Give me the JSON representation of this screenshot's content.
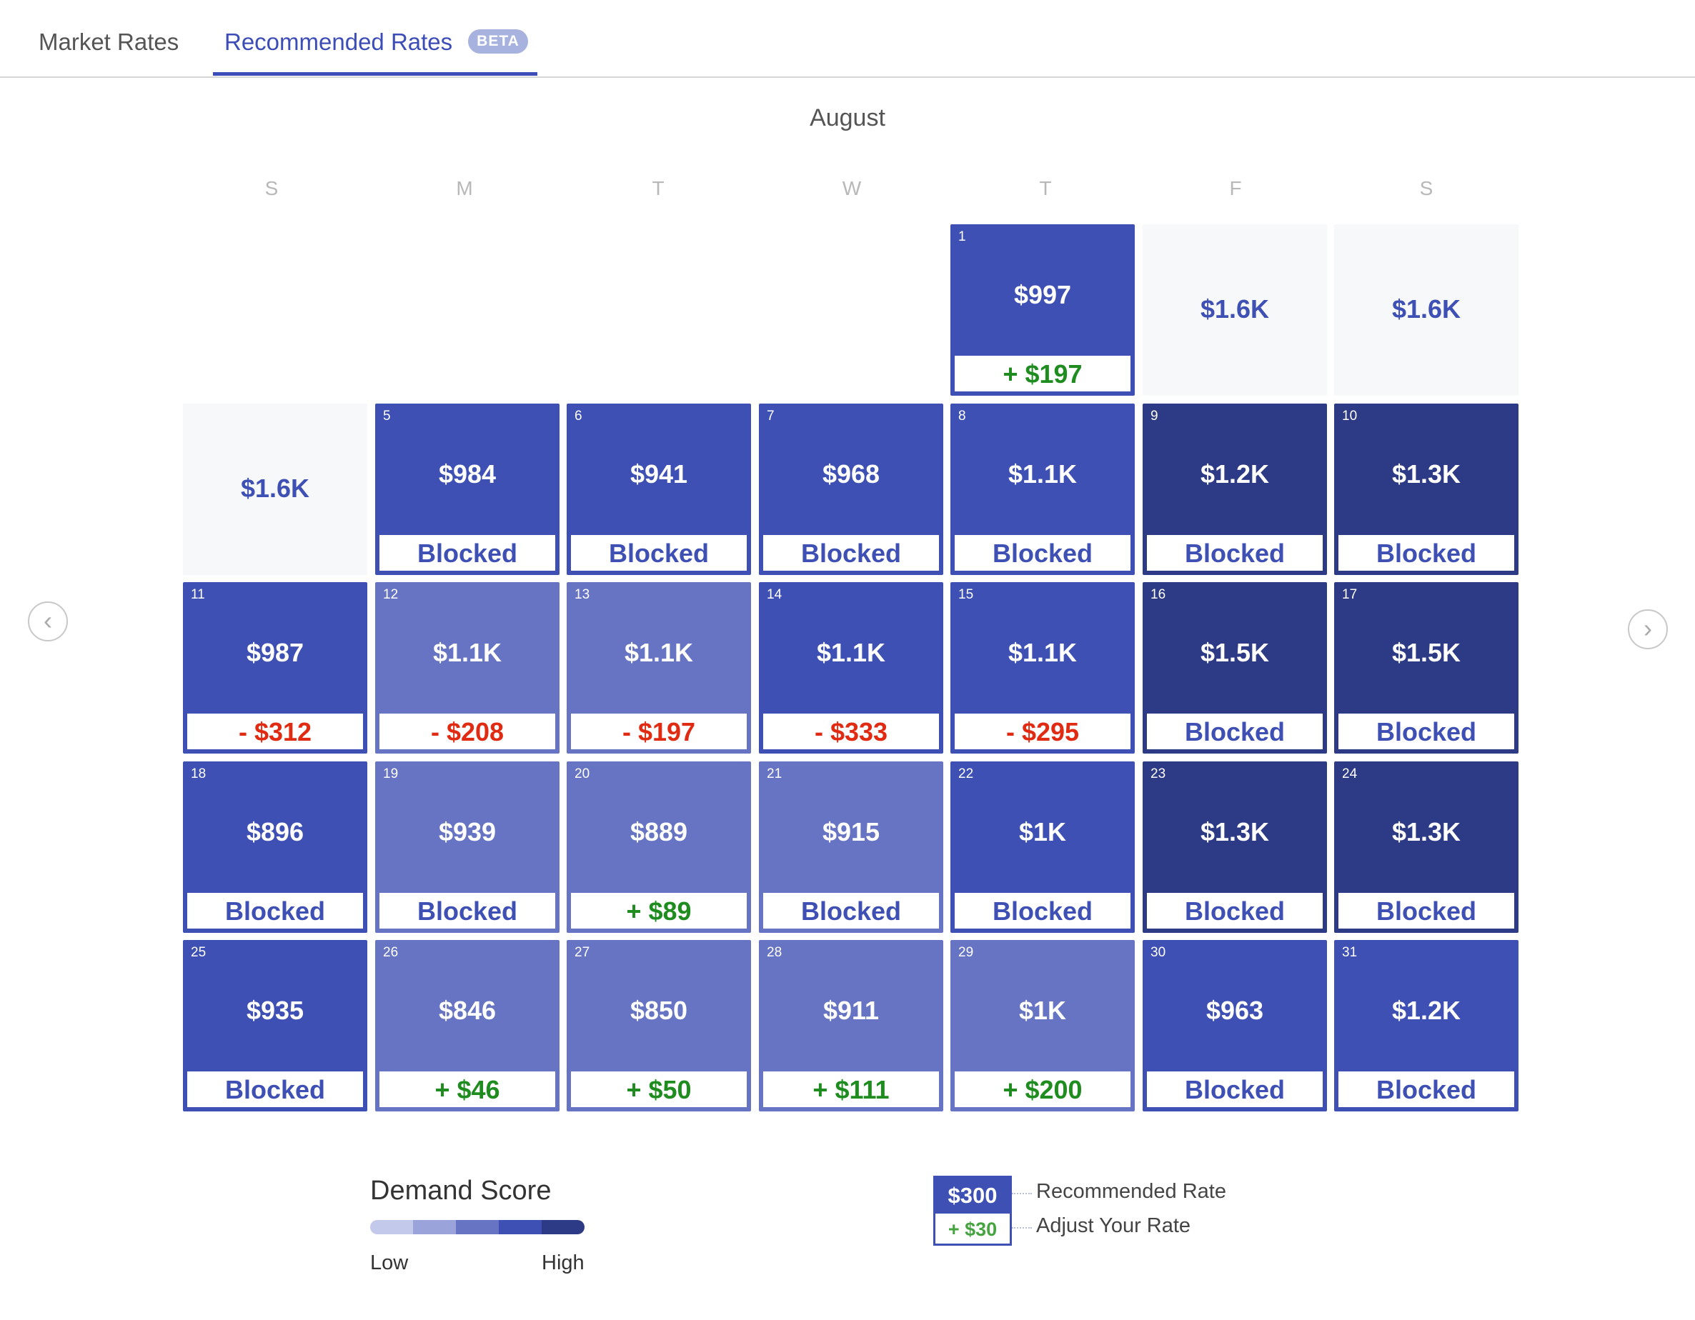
{
  "tabs": {
    "market": "Market Rates",
    "recommended": "Recommended Rates",
    "beta": "BETA"
  },
  "month": "August",
  "weekdays": [
    "S",
    "M",
    "T",
    "W",
    "T",
    "F",
    "S"
  ],
  "days": [
    {
      "day": "1",
      "rate": "$997",
      "adjust": "+ $197",
      "kind": "pos",
      "level": 3
    },
    {
      "day": "",
      "rate": "$1.6K",
      "adjust": "",
      "kind": "",
      "level": 0
    },
    {
      "day": "",
      "rate": "$1.6K",
      "adjust": "",
      "kind": "",
      "level": 0
    },
    {
      "day": "",
      "rate": "$1.6K",
      "adjust": "",
      "kind": "",
      "level": 0
    },
    {
      "day": "5",
      "rate": "$984",
      "adjust": "Blocked",
      "kind": "blocked",
      "level": 3
    },
    {
      "day": "6",
      "rate": "$941",
      "adjust": "Blocked",
      "kind": "blocked",
      "level": 3
    },
    {
      "day": "7",
      "rate": "$968",
      "adjust": "Blocked",
      "kind": "blocked",
      "level": 3
    },
    {
      "day": "8",
      "rate": "$1.1K",
      "adjust": "Blocked",
      "kind": "blocked",
      "level": 3
    },
    {
      "day": "9",
      "rate": "$1.2K",
      "adjust": "Blocked",
      "kind": "blocked",
      "level": 4
    },
    {
      "day": "10",
      "rate": "$1.3K",
      "adjust": "Blocked",
      "kind": "blocked",
      "level": 4
    },
    {
      "day": "11",
      "rate": "$987",
      "adjust": "- $312",
      "kind": "neg",
      "level": 3
    },
    {
      "day": "12",
      "rate": "$1.1K",
      "adjust": "- $208",
      "kind": "neg",
      "level": 2
    },
    {
      "day": "13",
      "rate": "$1.1K",
      "adjust": "- $197",
      "kind": "neg",
      "level": 2
    },
    {
      "day": "14",
      "rate": "$1.1K",
      "adjust": "- $333",
      "kind": "neg",
      "level": 3
    },
    {
      "day": "15",
      "rate": "$1.1K",
      "adjust": "- $295",
      "kind": "neg",
      "level": 3
    },
    {
      "day": "16",
      "rate": "$1.5K",
      "adjust": "Blocked",
      "kind": "blocked",
      "level": 4
    },
    {
      "day": "17",
      "rate": "$1.5K",
      "adjust": "Blocked",
      "kind": "blocked",
      "level": 4
    },
    {
      "day": "18",
      "rate": "$896",
      "adjust": "Blocked",
      "kind": "blocked",
      "level": 3
    },
    {
      "day": "19",
      "rate": "$939",
      "adjust": "Blocked",
      "kind": "blocked",
      "level": 2
    },
    {
      "day": "20",
      "rate": "$889",
      "adjust": "+ $89",
      "kind": "pos",
      "level": 2
    },
    {
      "day": "21",
      "rate": "$915",
      "adjust": "Blocked",
      "kind": "blocked",
      "level": 2
    },
    {
      "day": "22",
      "rate": "$1K",
      "adjust": "Blocked",
      "kind": "blocked",
      "level": 3
    },
    {
      "day": "23",
      "rate": "$1.3K",
      "adjust": "Blocked",
      "kind": "blocked",
      "level": 4
    },
    {
      "day": "24",
      "rate": "$1.3K",
      "adjust": "Blocked",
      "kind": "blocked",
      "level": 4
    },
    {
      "day": "25",
      "rate": "$935",
      "adjust": "Blocked",
      "kind": "blocked",
      "level": 3
    },
    {
      "day": "26",
      "rate": "$846",
      "adjust": "+ $46",
      "kind": "pos",
      "level": 2
    },
    {
      "day": "27",
      "rate": "$850",
      "adjust": "+ $50",
      "kind": "pos",
      "level": 2
    },
    {
      "day": "28",
      "rate": "$911",
      "adjust": "+ $111",
      "kind": "pos",
      "level": 2
    },
    {
      "day": "29",
      "rate": "$1K",
      "adjust": "+ $200",
      "kind": "pos",
      "level": 2
    },
    {
      "day": "30",
      "rate": "$963",
      "adjust": "Blocked",
      "kind": "blocked",
      "level": 3
    },
    {
      "day": "31",
      "rate": "$1.2K",
      "adjust": "Blocked",
      "kind": "blocked",
      "level": 3
    }
  ],
  "legend": {
    "demand_title": "Demand Score",
    "low": "Low",
    "high": "High",
    "scale_colors": [
      "#c3c9ea",
      "#9aa4db",
      "#6674c3",
      "#3e50b4",
      "#2d3a85"
    ],
    "key_rate": "$300",
    "key_adjust": "+ $30",
    "key_rate_label": "Recommended Rate",
    "key_adjust_label": "Adjust Your Rate"
  },
  "icons": {
    "prev": "chevron-left-icon",
    "next": "chevron-right-icon"
  },
  "colors": {
    "accent": "#3d4db7",
    "positive": "#1f8c1f",
    "negative": "#e02a12"
  }
}
